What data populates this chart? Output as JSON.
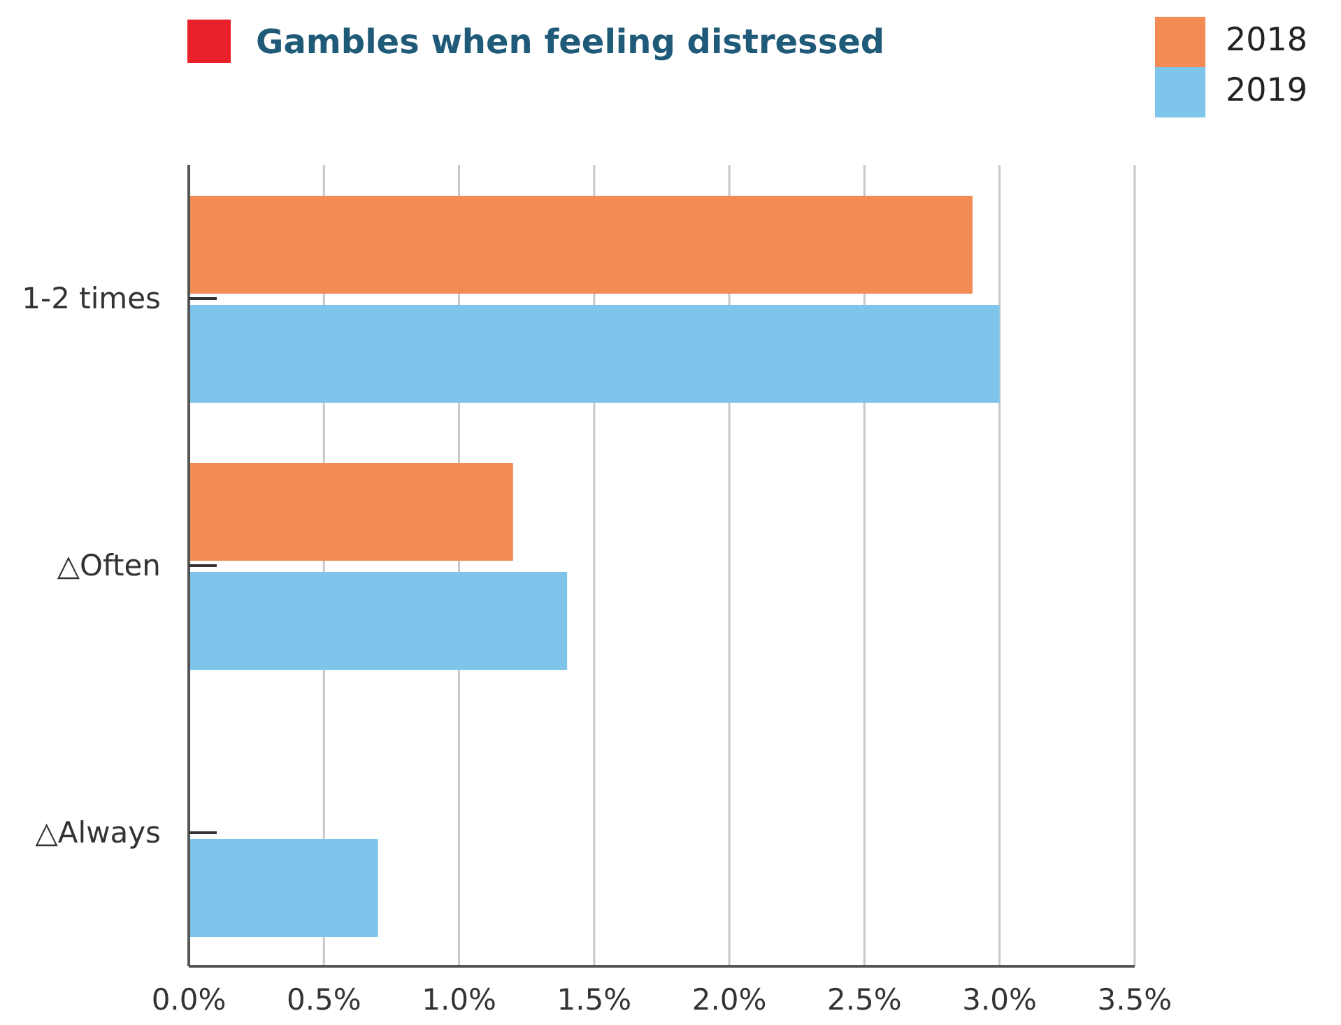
{
  "chart_data": {
    "type": "bar",
    "orientation": "horizontal",
    "title": "Gambles when feeling distressed",
    "categories": [
      "1-2 times",
      "△Often",
      "△Always"
    ],
    "series": [
      {
        "name": "2018",
        "color": "#f28c54",
        "values": [
          2.9,
          1.2,
          null
        ]
      },
      {
        "name": "2019",
        "color": "#7fc4eb",
        "values": [
          3.0,
          1.4,
          0.7
        ]
      }
    ],
    "xlim": [
      0,
      3.5
    ],
    "xticks": [
      {
        "value": 0,
        "label": "0.0%"
      },
      {
        "value": 0.5,
        "label": "0.5%"
      },
      {
        "value": 1,
        "label": "1.0%"
      },
      {
        "value": 1.5,
        "label": "1.5%"
      },
      {
        "value": 2,
        "label": "2.0%"
      },
      {
        "value": 2.5,
        "label": "2.5%"
      },
      {
        "value": 3,
        "label": "3.0%"
      },
      {
        "value": 3.5,
        "label": "3.5%"
      }
    ],
    "grid": "x",
    "legend": "top right"
  }
}
